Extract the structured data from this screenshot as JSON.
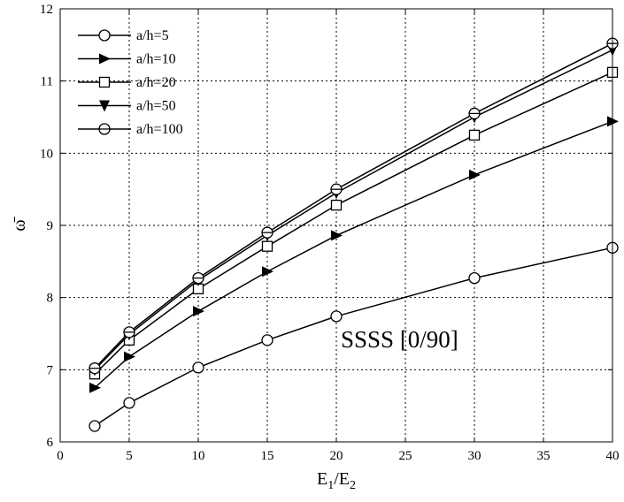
{
  "chart_data": {
    "type": "line",
    "x": [
      2.5,
      5,
      10,
      15,
      20,
      30,
      40
    ],
    "series": [
      {
        "name": "a/h=5",
        "marker": "circle",
        "values": [
          6.22,
          6.54,
          7.03,
          7.41,
          7.74,
          8.27,
          8.69
        ]
      },
      {
        "name": "a/h=10",
        "marker": "triangle-right",
        "values": [
          6.75,
          7.18,
          7.81,
          8.36,
          8.86,
          9.7,
          10.44
        ]
      },
      {
        "name": "a/h=20",
        "marker": "square",
        "values": [
          6.94,
          7.41,
          8.12,
          8.71,
          9.28,
          10.25,
          11.12
        ]
      },
      {
        "name": "a/h=50",
        "marker": "triangle-down",
        "values": [
          7.0,
          7.49,
          8.24,
          8.86,
          9.45,
          10.5,
          11.43
        ]
      },
      {
        "name": "a/h=100",
        "marker": "circle-line",
        "values": [
          7.02,
          7.52,
          8.27,
          8.9,
          9.5,
          10.55,
          11.52
        ]
      }
    ],
    "xlim": [
      0,
      40
    ],
    "ylim": [
      6,
      12
    ],
    "xticks": [
      "0",
      "5",
      "10",
      "15",
      "20",
      "25",
      "30",
      "35",
      "40"
    ],
    "yticks": [
      "6",
      "7",
      "8",
      "9",
      "10",
      "11",
      "12"
    ],
    "ylabel": "ω̄",
    "xlabel": {
      "main": "E",
      "sub1": "1",
      "sep": "/E",
      "sub2": "2"
    },
    "annotation": "SSSS [0/90]",
    "grid": true,
    "legend": "top-left",
    "line_color": "#000000"
  }
}
